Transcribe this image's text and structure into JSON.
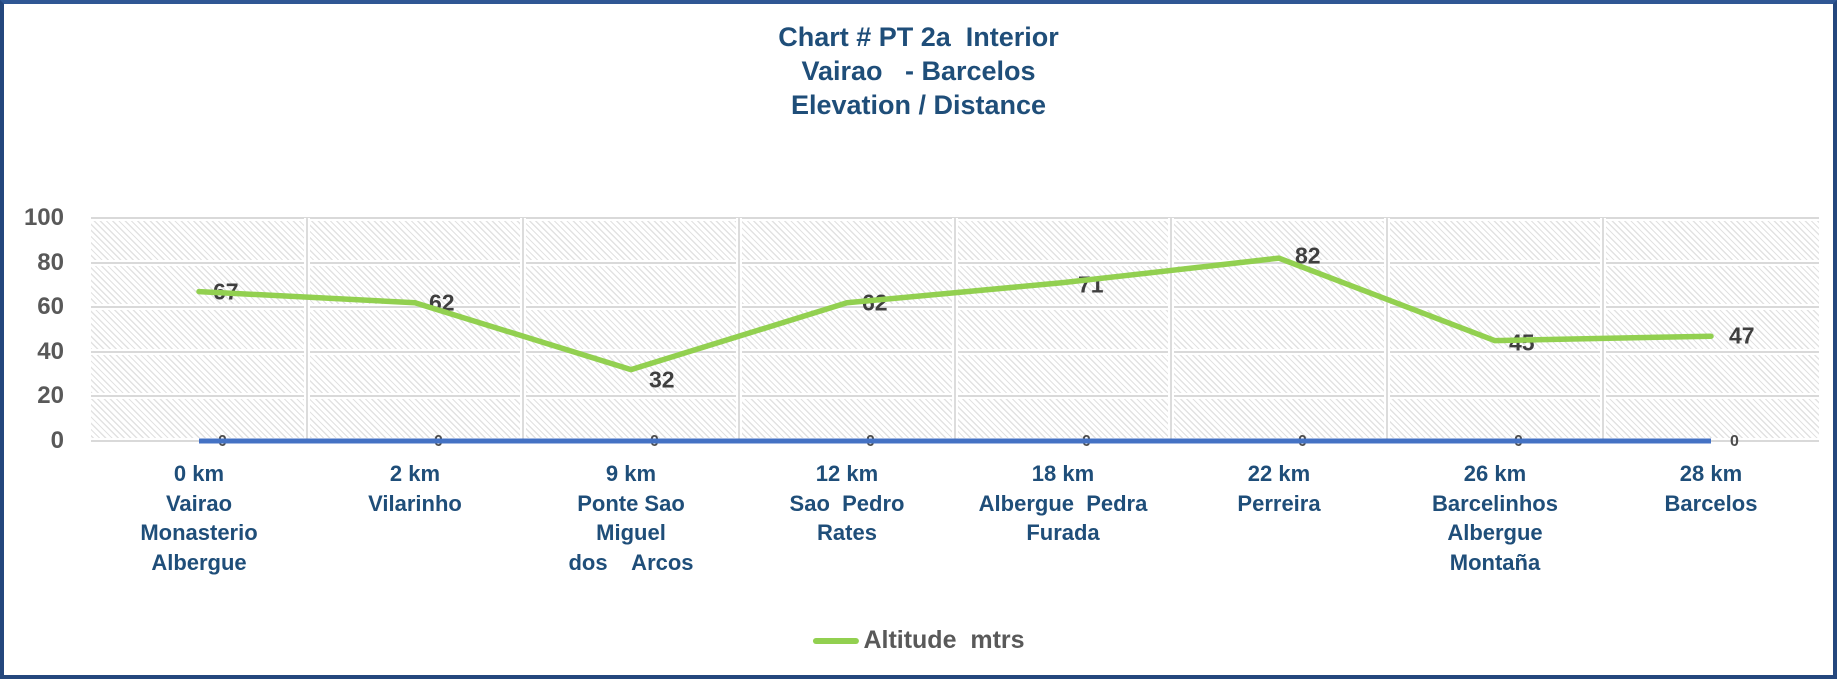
{
  "title": {
    "lines": [
      "Chart # PT 2a  Interior",
      "Vairao   - Barcelos",
      "Elevation / Distance"
    ]
  },
  "legend": {
    "label": "Altitude  mtrs",
    "position": "bottom-center"
  },
  "colors": {
    "title_navy": "#1F4E79",
    "axis_label_navy": "#1F4E79",
    "altitude_line_green": "#92D050",
    "baseline_blue": "#4472C4",
    "tick_gray": "#595959",
    "value_label_gray": "#3F3F3F",
    "gridline_gray": "#D9D9D9",
    "frame_border_navy": "#24477D"
  },
  "chart_data": {
    "type": "line",
    "title": "Chart # PT 2a  Interior Vairao - Barcelos Elevation / Distance",
    "categories": [
      [
        "0 km",
        "Vairao",
        "Monasterio",
        "Albergue"
      ],
      [
        "2 km",
        "Vilarinho"
      ],
      [
        "9 km",
        "Ponte Sao",
        "Miguel",
        "dos    Arcos"
      ],
      [
        "12 km",
        "Sao  Pedro",
        "Rates"
      ],
      [
        "18 km",
        "Albergue  Pedra",
        "Furada"
      ],
      [
        "22 km",
        "Perreira"
      ],
      [
        "26 km",
        "Barcelinhos",
        "Albergue",
        "Montaña"
      ],
      [
        "28 km",
        "Barcelos"
      ]
    ],
    "series": [
      {
        "name": "Altitude  mtrs",
        "values": [
          67,
          62,
          32,
          62,
          71,
          82,
          45,
          47
        ],
        "color": "#92D050",
        "data_labels": true
      },
      {
        "name": "",
        "values": [
          0,
          0,
          0,
          0,
          0,
          0,
          0,
          0
        ],
        "color": "#4472C4",
        "data_labels": true
      }
    ],
    "xlabel": "",
    "ylabel": "",
    "y_ticks": [
      0,
      20,
      40,
      60,
      80,
      100
    ],
    "ylim": [
      0,
      100
    ],
    "grid": true,
    "plot_background": "diagonal-hatch",
    "legend_position": "bottom-center"
  }
}
